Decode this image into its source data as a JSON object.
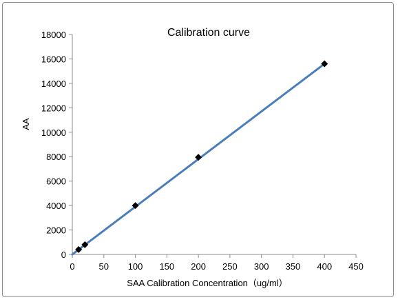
{
  "chart_data": {
    "type": "scatter",
    "title": "Calibration curve",
    "xlabel": "SAA Calibration Concentration（ug/ml）",
    "ylabel": "AA",
    "xlim": [
      0,
      450
    ],
    "ylim": [
      0,
      18000
    ],
    "x_ticks": [
      "0",
      "50",
      "100",
      "150",
      "200",
      "250",
      "300",
      "350",
      "400",
      "450"
    ],
    "y_ticks": [
      "0",
      "2000",
      "4000",
      "6000",
      "8000",
      "10000",
      "12000",
      "14000",
      "16000",
      "18000"
    ],
    "grid": false,
    "legend": "none",
    "series": [
      {
        "x": [
          10,
          20,
          100,
          200,
          400
        ],
        "y": [
          400,
          800,
          4000,
          7950,
          15600
        ],
        "marker": "diamond",
        "marker_color": "#000000"
      }
    ],
    "trendline": {
      "type": "linear",
      "x": [
        0,
        400
      ],
      "y": [
        0,
        15600
      ],
      "color": "#4a7ebb"
    }
  }
}
